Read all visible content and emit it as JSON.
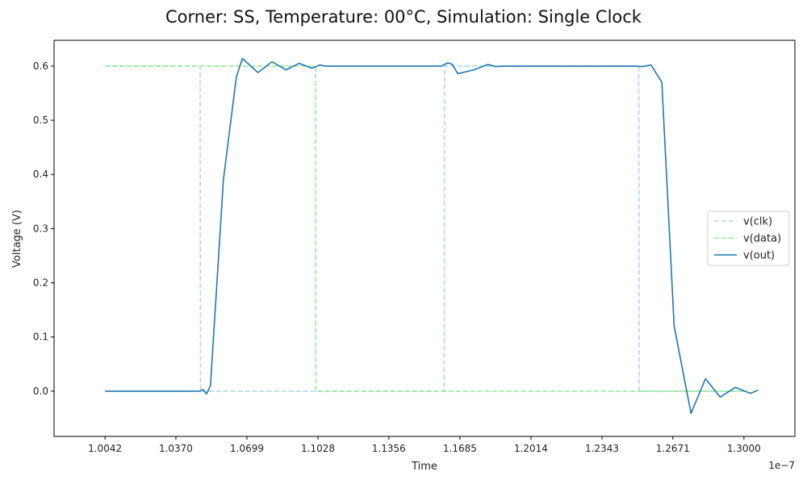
{
  "chart_data": {
    "type": "line",
    "title": "Corner: SS, Temperature: 00°C, Simulation: Single Clock",
    "xlabel": "Time",
    "ylabel": "Voltage (V)",
    "x_offset_label": "1e−7",
    "xlim": [
      0.9806,
      1.3236
    ],
    "ylim": [
      -0.0835,
      0.6475
    ],
    "x_ticks": [
      1.0042,
      1.037,
      1.0699,
      1.1028,
      1.1356,
      1.1685,
      1.2014,
      1.2343,
      1.2671,
      1.3
    ],
    "x_tick_labels": [
      "1.0042",
      "1.0370",
      "1.0699",
      "1.1028",
      "1.1356",
      "1.1685",
      "1.2014",
      "1.2343",
      "1.2671",
      "1.3000"
    ],
    "y_ticks": [
      0.0,
      0.1,
      0.2,
      0.3,
      0.4,
      0.5,
      0.6
    ],
    "y_tick_labels": [
      "0.0",
      "0.1",
      "0.2",
      "0.3",
      "0.4",
      "0.5",
      "0.6"
    ],
    "grid": false,
    "legend_position": "center-right",
    "series": [
      {
        "name": "v(clk)",
        "color": "#add8e6",
        "dash": "dashed",
        "points": [
          [
            1.0042,
            0.6
          ],
          [
            1.0482,
            0.6
          ],
          [
            1.0484,
            0.0
          ],
          [
            1.1612,
            0.0
          ],
          [
            1.1614,
            0.6
          ],
          [
            1.2513,
            0.6
          ],
          [
            1.2515,
            0.0
          ],
          [
            1.3,
            0.0
          ]
        ]
      },
      {
        "name": "v(data)",
        "color": "#90ee90",
        "dash": "dashed",
        "points": [
          [
            1.0042,
            0.6
          ],
          [
            1.1016,
            0.6
          ],
          [
            1.1018,
            0.0
          ],
          [
            1.3,
            0.0
          ]
        ]
      },
      {
        "name": "v(out)",
        "color": "#1f77b4",
        "dash": "solid",
        "points": [
          [
            1.0042,
            0.0
          ],
          [
            1.0482,
            0.0
          ],
          [
            1.0495,
            0.003
          ],
          [
            1.0512,
            -0.005
          ],
          [
            1.053,
            0.01
          ],
          [
            1.059,
            0.39
          ],
          [
            1.065,
            0.58
          ],
          [
            1.0678,
            0.614
          ],
          [
            1.075,
            0.588
          ],
          [
            1.0815,
            0.608
          ],
          [
            1.088,
            0.593
          ],
          [
            1.094,
            0.605
          ],
          [
            1.1,
            0.596
          ],
          [
            1.1036,
            0.602
          ],
          [
            1.106,
            0.6
          ],
          [
            1.16,
            0.6
          ],
          [
            1.163,
            0.606
          ],
          [
            1.165,
            0.603
          ],
          [
            1.1675,
            0.586
          ],
          [
            1.175,
            0.593
          ],
          [
            1.1815,
            0.603
          ],
          [
            1.185,
            0.599
          ],
          [
            1.19,
            0.6
          ],
          [
            1.25,
            0.6
          ],
          [
            1.253,
            0.599
          ],
          [
            1.257,
            0.602
          ],
          [
            1.262,
            0.57
          ],
          [
            1.2677,
            0.12
          ],
          [
            1.2755,
            -0.041
          ],
          [
            1.2822,
            0.023
          ],
          [
            1.289,
            -0.011
          ],
          [
            1.296,
            0.007
          ],
          [
            1.303,
            -0.004
          ],
          [
            1.3066,
            0.002
          ]
        ]
      }
    ]
  }
}
